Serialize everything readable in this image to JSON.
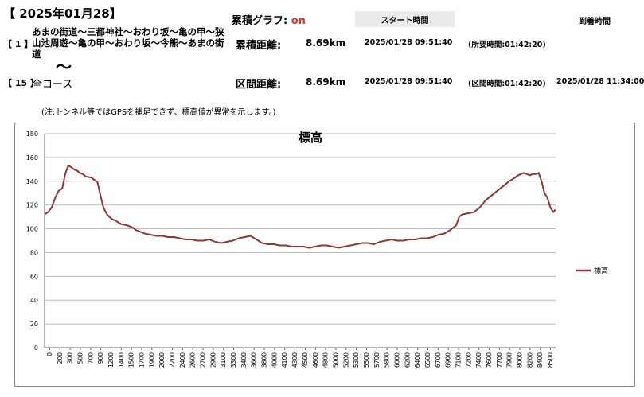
{
  "header": {
    "date": "【 2025年01月28】",
    "graph_label": "累積グラフ:",
    "graph_state": "on",
    "start_time_label": "スタート時間",
    "arrival_time_label": "到着時間"
  },
  "route1": {
    "number": "【 1 】",
    "description": "あまの街道～三都神社～おわり坂～亀の甲～狭山池周遊～亀の甲～おわり坂～今熊～あまの街道",
    "tilde": "～",
    "distance_label": "累積距離:",
    "distance": "8.69km",
    "start_time": "2025/01/28 09:51:40",
    "duration": "(所要時間:01:42:20)"
  },
  "route15": {
    "number": "【 15 】",
    "name": "全コース",
    "distance_label": "区間距離:",
    "distance": "8.69km",
    "start_time": "2025/01/28 09:51:40",
    "duration": "(区間時間:01:42:20)",
    "end_time": "2025/01/28 11:34:00"
  },
  "note": "(注:トンネル等ではGPSを補足できず、標高値が異常を示します。)",
  "chart_data": {
    "type": "line",
    "title": "標高",
    "xlabel": "",
    "ylabel": "",
    "ylim": [
      0,
      180
    ],
    "yticks": [
      0,
      20,
      40,
      60,
      80,
      100,
      120,
      140,
      160,
      180
    ],
    "xlim": [
      0,
      8690
    ],
    "xticks": [
      0,
      200,
      300,
      500,
      700,
      900,
      1200,
      1400,
      1500,
      1700,
      1900,
      2000,
      2200,
      2400,
      2600,
      2700,
      2900,
      3100,
      3300,
      3400,
      3600,
      3800,
      4000,
      4100,
      4300,
      4500,
      4600,
      4800,
      5000,
      5200,
      5300,
      5500,
      5700,
      5800,
      6000,
      6200,
      6400,
      6500,
      6700,
      6900,
      7100,
      7200,
      7400,
      7600,
      7700,
      7900,
      8000,
      8200,
      8400,
      8500
    ],
    "grid": "horizontal",
    "legend_position": "right",
    "series": [
      {
        "name": "標高",
        "color": "#993333",
        "x": [
          0,
          60,
          120,
          180,
          240,
          300,
          350,
          400,
          450,
          500,
          550,
          600,
          650,
          700,
          800,
          900,
          950,
          1000,
          1050,
          1100,
          1150,
          1200,
          1300,
          1400,
          1500,
          1550,
          1600,
          1700,
          1800,
          1900,
          2000,
          2100,
          2200,
          2300,
          2400,
          2500,
          2600,
          2700,
          2800,
          2900,
          3000,
          3100,
          3200,
          3300,
          3400,
          3500,
          3600,
          3700,
          3800,
          3900,
          4000,
          4100,
          4200,
          4300,
          4400,
          4500,
          4600,
          4700,
          4800,
          4900,
          5000,
          5100,
          5200,
          5300,
          5400,
          5500,
          5600,
          5700,
          5800,
          5900,
          6000,
          6100,
          6200,
          6300,
          6400,
          6500,
          6600,
          6700,
          6800,
          6900,
          7000,
          7050,
          7100,
          7200,
          7300,
          7400,
          7500,
          7600,
          7700,
          7800,
          7900,
          8000,
          8050,
          8100,
          8150,
          8200,
          8250,
          8300,
          8350,
          8400,
          8450,
          8500,
          8550,
          8600,
          8650,
          8690
        ],
        "values": [
          112,
          114,
          118,
          126,
          132,
          134,
          146,
          153,
          152,
          150,
          149,
          147,
          146,
          144,
          143,
          139,
          128,
          118,
          113,
          110,
          108,
          107,
          104,
          103,
          101,
          99,
          98,
          96,
          95,
          94,
          94,
          93,
          93,
          92,
          91,
          91,
          90,
          90,
          91,
          89,
          88,
          89,
          90,
          92,
          93,
          94,
          91,
          88,
          87,
          87,
          86,
          86,
          85,
          85,
          85,
          84,
          85,
          86,
          86,
          85,
          84,
          85,
          86,
          87,
          88,
          88,
          87,
          89,
          90,
          91,
          90,
          90,
          91,
          91,
          92,
          92,
          93,
          95,
          96,
          99,
          103,
          110,
          112,
          113,
          114,
          118,
          124,
          128,
          132,
          136,
          140,
          143,
          145,
          146,
          147,
          146,
          145,
          146,
          146,
          147,
          140,
          130,
          126,
          118,
          114,
          116
        ]
      }
    ]
  }
}
